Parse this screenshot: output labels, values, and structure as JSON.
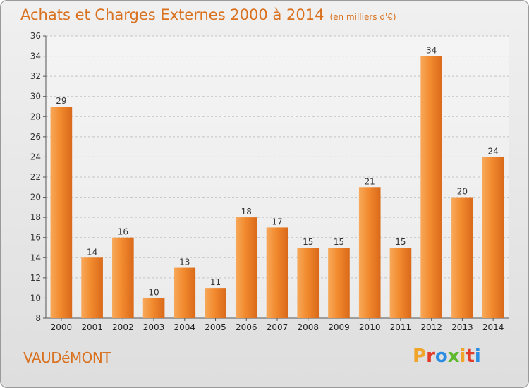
{
  "header": {
    "title": "Achats et Charges Externes 2000 à 2014",
    "unit": "(en milliers d'€)"
  },
  "footer": {
    "town": "VAUDéMONT",
    "logo": [
      "P",
      "r",
      "o",
      "x",
      "i",
      "t",
      "i"
    ],
    "logo_colors": [
      "#f0a52a",
      "#e33b2a",
      "#2a8de3",
      "#5cb82e",
      "#f0a52a",
      "#e33b2a",
      "#2a8de3"
    ]
  },
  "chart_data": {
    "type": "bar",
    "title": "Achats et Charges Externes 2000 à 2014",
    "subtitle": "(en milliers d'€)",
    "categories": [
      "2000",
      "2001",
      "2002",
      "2003",
      "2004",
      "2005",
      "2006",
      "2007",
      "2008",
      "2009",
      "2010",
      "2011",
      "2012",
      "2013",
      "2014"
    ],
    "values": [
      29,
      14,
      16,
      10,
      13,
      11,
      18,
      17,
      15,
      15,
      21,
      15,
      34,
      20,
      24
    ],
    "value_labels": [
      "29",
      "14",
      "16",
      "10",
      "13",
      "11",
      "18",
      "17",
      "15",
      "15",
      "21",
      "15",
      "34",
      "20",
      "24"
    ],
    "yticks": [
      "8",
      "10",
      "12",
      "14",
      "16",
      "18",
      "20",
      "22",
      "24",
      "26",
      "28",
      "30",
      "32",
      "34",
      "36"
    ],
    "ylim": [
      8,
      36
    ],
    "grid": true,
    "bar_color": "#f28a2e",
    "bar_color_light": "#f7a95a",
    "bar_color_dark": "#d9691a"
  }
}
